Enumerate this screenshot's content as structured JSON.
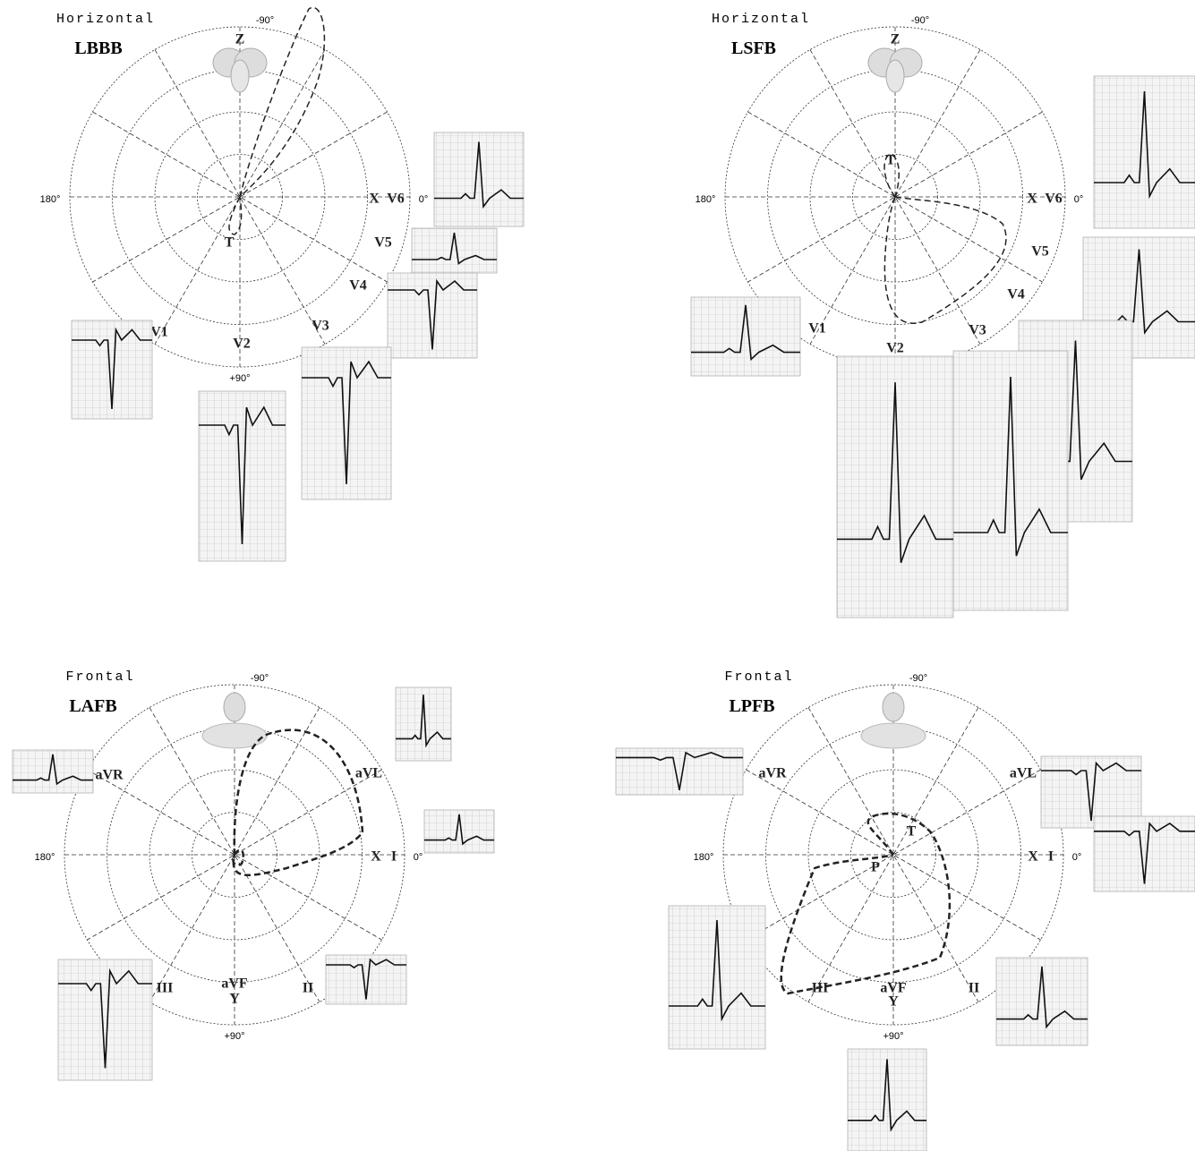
{
  "panels": [
    {
      "plane": "Horizontal",
      "title": "LBBB",
      "angles": {
        "top": "-90°",
        "left": "180°",
        "right": "0°",
        "bottom": "+90°"
      },
      "labels": [
        "Z",
        "X",
        "V6",
        "V5",
        "V4",
        "V3",
        "V2",
        "V1",
        "T"
      ]
    },
    {
      "plane": "Horizontal",
      "title": "LSFB",
      "angles": {
        "top": "-90°",
        "left": "180°",
        "right": "0°",
        "bottom": "+90°"
      },
      "labels": [
        "Z",
        "T",
        "X",
        "V6",
        "V5",
        "V4",
        "V3",
        "V2",
        "V1"
      ]
    },
    {
      "plane": "Frontal",
      "title": "LAFB",
      "angles": {
        "top": "-90°",
        "left": "180°",
        "right": "0°",
        "bottom": "+90°"
      },
      "labels": [
        "aVR",
        "aVL",
        "X",
        "I",
        "III",
        "aVF",
        "Y",
        "II"
      ]
    },
    {
      "plane": "Frontal",
      "title": "LPFB",
      "angles": {
        "top": "-90°",
        "left": "180°",
        "right": "0°",
        "bottom": "+90°"
      },
      "labels": [
        "aVR",
        "aVL",
        "X",
        "I",
        "T",
        "P",
        "III",
        "aVF",
        "Y",
        "II"
      ]
    }
  ]
}
